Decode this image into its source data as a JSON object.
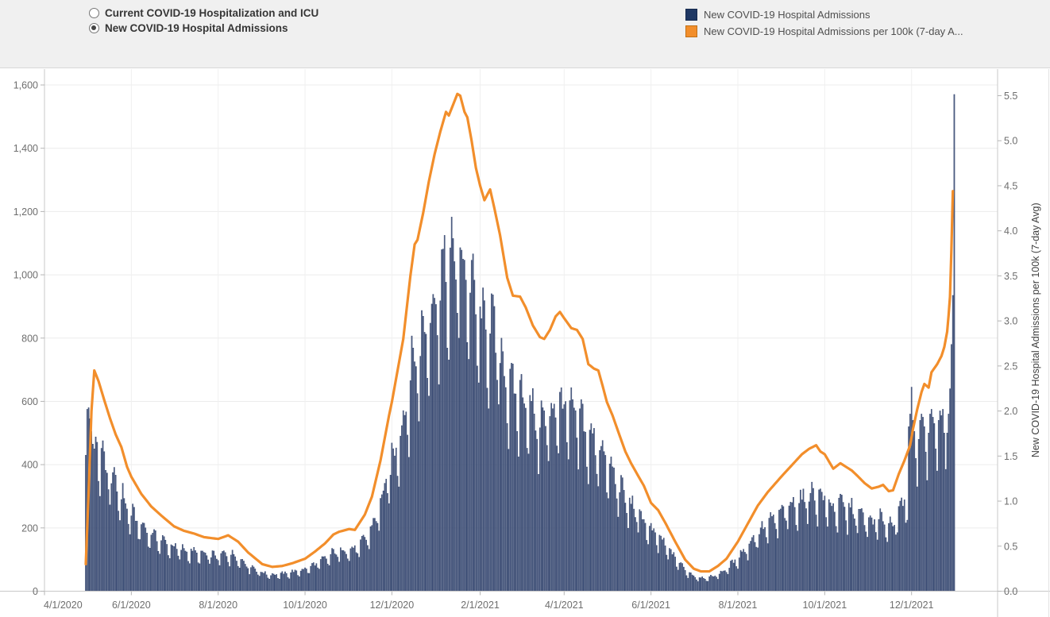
{
  "header": {
    "radio_options": [
      {
        "label": "Current COVID-19 Hospitalization and ICU",
        "selected": false
      },
      {
        "label": "New COVID-19 Hospital Admissions",
        "selected": true
      }
    ],
    "legend": [
      {
        "label": "New COVID-19 Hospital Admissions",
        "color": "#1f3864"
      },
      {
        "label": "New COVID-19 Hospital Admissions per 100k (7-day A...",
        "color": "#f28e2b"
      }
    ]
  },
  "chart_data": {
    "type": "bar",
    "subtype": "combo-bar-line-dual-axis",
    "title": "",
    "x_axis": {
      "start_date": "2020-04-01",
      "tick_labels": [
        "4/1/2020",
        "6/1/2020",
        "8/1/2020",
        "10/1/2020",
        "12/1/2020",
        "2/1/2021",
        "4/1/2021",
        "6/1/2021",
        "8/1/2021",
        "10/1/2021",
        "12/1/2021"
      ],
      "tick_dates": [
        "2020-04-01",
        "2020-06-01",
        "2020-08-01",
        "2020-10-01",
        "2020-12-01",
        "2021-02-01",
        "2021-04-01",
        "2021-06-01",
        "2021-08-01",
        "2021-10-01",
        "2021-12-01"
      ],
      "grid": true
    },
    "left_axis": {
      "label": "",
      "range": [
        0,
        1600
      ],
      "tick_labels": [
        "0",
        "200",
        "400",
        "600",
        "800",
        "1,000",
        "1,200",
        "1,400",
        "1,600"
      ],
      "grid": true
    },
    "right_axis": {
      "label": "New COVID-19 Hospital Admissions per 100k (7-day Avg)",
      "range": [
        0,
        5.5
      ],
      "tick_labels": [
        "0.0",
        "0.5",
        "1.0",
        "1.5",
        "2.0",
        "2.5",
        "3.0",
        "3.5",
        "4.0",
        "4.5",
        "5.0",
        "5.5"
      ],
      "grid": false
    },
    "series": [
      {
        "name": "New COVID-19 Hospital Admissions",
        "type": "bar",
        "axis": "left",
        "color": "#1f3864",
        "bar_fill": "#556384",
        "bar_stroke": "#2c3f6b",
        "start": "2020-04-30",
        "end": "2021-12-31",
        "generation": {
          "scale_from_line_per_100k": 185,
          "weekday_factors": [
            0.74,
            1.05,
            1.12,
            1.1,
            1.07,
            1.0,
            0.84
          ],
          "jitter": 0.08,
          "max_cap": 1235
        },
        "overrides": {
          "2020-04-30": 430,
          "2020-05-01": 575,
          "2020-05-02": 580,
          "2020-05-03": 545,
          "2020-05-04": 505,
          "2020-05-05": 465,
          "2020-05-06": 450,
          "2021-11-29": 520,
          "2021-11-30": 560,
          "2021-12-01": 645,
          "2021-12-02": 540,
          "2021-12-03": 505,
          "2021-12-04": 420,
          "2021-12-05": 330,
          "2021-12-06": 480,
          "2021-12-07": 540,
          "2021-12-08": 560,
          "2021-12-09": 550,
          "2021-12-10": 520,
          "2021-12-11": 440,
          "2021-12-12": 350,
          "2021-12-13": 500,
          "2021-12-14": 560,
          "2021-12-15": 575,
          "2021-12-16": 550,
          "2021-12-17": 530,
          "2021-12-18": 450,
          "2021-12-19": 380,
          "2021-12-20": 540,
          "2021-12-21": 570,
          "2021-12-22": 555,
          "2021-12-23": 575,
          "2021-12-24": 500,
          "2021-12-25": 385,
          "2021-12-26": 500,
          "2021-12-27": 560,
          "2021-12-28": 640,
          "2021-12-29": 780,
          "2021-12-30": 935,
          "2021-12-31": 1570
        }
      },
      {
        "name": "New COVID-19 Hospital Admissions per 100k (7-day Avg)",
        "type": "line",
        "axis": "right",
        "color": "#f28e2b",
        "stroke_width": 3.2,
        "anchors": [
          [
            "2020-04-30",
            0.3
          ],
          [
            "2020-05-02",
            1.1
          ],
          [
            "2020-05-04",
            2.0
          ],
          [
            "2020-05-06",
            2.45
          ],
          [
            "2020-05-09",
            2.33
          ],
          [
            "2020-05-13",
            2.12
          ],
          [
            "2020-05-17",
            1.92
          ],
          [
            "2020-05-21",
            1.74
          ],
          [
            "2020-05-25",
            1.6
          ],
          [
            "2020-05-29",
            1.38
          ],
          [
            "2020-06-01",
            1.27
          ],
          [
            "2020-06-08",
            1.08
          ],
          [
            "2020-06-15",
            0.94
          ],
          [
            "2020-06-22",
            0.84
          ],
          [
            "2020-07-01",
            0.72
          ],
          [
            "2020-07-08",
            0.67
          ],
          [
            "2020-07-15",
            0.64
          ],
          [
            "2020-07-22",
            0.6
          ],
          [
            "2020-08-01",
            0.58
          ],
          [
            "2020-08-08",
            0.62
          ],
          [
            "2020-08-15",
            0.55
          ],
          [
            "2020-08-22",
            0.43
          ],
          [
            "2020-09-01",
            0.3
          ],
          [
            "2020-09-08",
            0.27
          ],
          [
            "2020-09-15",
            0.28
          ],
          [
            "2020-09-22",
            0.31
          ],
          [
            "2020-10-01",
            0.36
          ],
          [
            "2020-10-08",
            0.44
          ],
          [
            "2020-10-15",
            0.53
          ],
          [
            "2020-10-21",
            0.63
          ],
          [
            "2020-10-25",
            0.66
          ],
          [
            "2020-11-01",
            0.69
          ],
          [
            "2020-11-05",
            0.68
          ],
          [
            "2020-11-12",
            0.85
          ],
          [
            "2020-11-17",
            1.05
          ],
          [
            "2020-11-23",
            1.45
          ],
          [
            "2020-11-29",
            1.95
          ],
          [
            "2020-12-01",
            2.1
          ],
          [
            "2020-12-05",
            2.45
          ],
          [
            "2020-12-09",
            2.8
          ],
          [
            "2020-12-14",
            3.5
          ],
          [
            "2020-12-17",
            3.85
          ],
          [
            "2020-12-19",
            3.9
          ],
          [
            "2020-12-23",
            4.2
          ],
          [
            "2020-12-27",
            4.55
          ],
          [
            "2020-12-31",
            4.85
          ],
          [
            "2021-01-04",
            5.1
          ],
          [
            "2021-01-08",
            5.32
          ],
          [
            "2021-01-10",
            5.28
          ],
          [
            "2021-01-13",
            5.4
          ],
          [
            "2021-01-16",
            5.52
          ],
          [
            "2021-01-18",
            5.5
          ],
          [
            "2021-01-21",
            5.32
          ],
          [
            "2021-01-23",
            5.26
          ],
          [
            "2021-01-26",
            5.0
          ],
          [
            "2021-01-29",
            4.7
          ],
          [
            "2021-02-01",
            4.5
          ],
          [
            "2021-02-04",
            4.34
          ],
          [
            "2021-02-08",
            4.46
          ],
          [
            "2021-02-11",
            4.25
          ],
          [
            "2021-02-15",
            3.95
          ],
          [
            "2021-02-20",
            3.48
          ],
          [
            "2021-02-24",
            3.28
          ],
          [
            "2021-03-01",
            3.27
          ],
          [
            "2021-03-05",
            3.15
          ],
          [
            "2021-03-10",
            2.95
          ],
          [
            "2021-03-15",
            2.82
          ],
          [
            "2021-03-18",
            2.8
          ],
          [
            "2021-03-22",
            2.9
          ],
          [
            "2021-03-26",
            3.05
          ],
          [
            "2021-03-29",
            3.1
          ],
          [
            "2021-04-01",
            3.03
          ],
          [
            "2021-04-06",
            2.92
          ],
          [
            "2021-04-10",
            2.9
          ],
          [
            "2021-04-14",
            2.8
          ],
          [
            "2021-04-18",
            2.52
          ],
          [
            "2021-04-22",
            2.47
          ],
          [
            "2021-04-25",
            2.45
          ],
          [
            "2021-04-28",
            2.28
          ],
          [
            "2021-05-01",
            2.1
          ],
          [
            "2021-05-05",
            1.95
          ],
          [
            "2021-05-09",
            1.77
          ],
          [
            "2021-05-14",
            1.55
          ],
          [
            "2021-05-18",
            1.42
          ],
          [
            "2021-05-23",
            1.28
          ],
          [
            "2021-05-27",
            1.17
          ],
          [
            "2021-06-01",
            0.98
          ],
          [
            "2021-06-06",
            0.9
          ],
          [
            "2021-06-11",
            0.76
          ],
          [
            "2021-06-18",
            0.55
          ],
          [
            "2021-06-25",
            0.35
          ],
          [
            "2021-07-01",
            0.25
          ],
          [
            "2021-07-06",
            0.22
          ],
          [
            "2021-07-12",
            0.22
          ],
          [
            "2021-07-18",
            0.28
          ],
          [
            "2021-07-24",
            0.36
          ],
          [
            "2021-08-01",
            0.55
          ],
          [
            "2021-08-08",
            0.75
          ],
          [
            "2021-08-15",
            0.95
          ],
          [
            "2021-08-22",
            1.1
          ],
          [
            "2021-09-01",
            1.28
          ],
          [
            "2021-09-08",
            1.4
          ],
          [
            "2021-09-15",
            1.52
          ],
          [
            "2021-09-20",
            1.58
          ],
          [
            "2021-09-25",
            1.62
          ],
          [
            "2021-09-28",
            1.55
          ],
          [
            "2021-10-01",
            1.52
          ],
          [
            "2021-10-07",
            1.36
          ],
          [
            "2021-10-12",
            1.42
          ],
          [
            "2021-10-16",
            1.38
          ],
          [
            "2021-10-20",
            1.34
          ],
          [
            "2021-10-24",
            1.28
          ],
          [
            "2021-10-29",
            1.2
          ],
          [
            "2021-11-03",
            1.14
          ],
          [
            "2021-11-08",
            1.16
          ],
          [
            "2021-11-11",
            1.18
          ],
          [
            "2021-11-15",
            1.11
          ],
          [
            "2021-11-18",
            1.12
          ],
          [
            "2021-11-22",
            1.3
          ],
          [
            "2021-11-26",
            1.45
          ],
          [
            "2021-11-30",
            1.62
          ],
          [
            "2021-12-02",
            1.8
          ],
          [
            "2021-12-05",
            2.02
          ],
          [
            "2021-12-08",
            2.21
          ],
          [
            "2021-12-10",
            2.3
          ],
          [
            "2021-12-13",
            2.26
          ],
          [
            "2021-12-15",
            2.43
          ],
          [
            "2021-12-19",
            2.52
          ],
          [
            "2021-12-22",
            2.61
          ],
          [
            "2021-12-24",
            2.71
          ],
          [
            "2021-12-26",
            2.88
          ],
          [
            "2021-12-27",
            3.06
          ],
          [
            "2021-12-28",
            3.27
          ],
          [
            "2021-12-29",
            3.8
          ],
          [
            "2021-12-30",
            4.44
          ]
        ]
      }
    ],
    "legend_position": "top-right"
  }
}
